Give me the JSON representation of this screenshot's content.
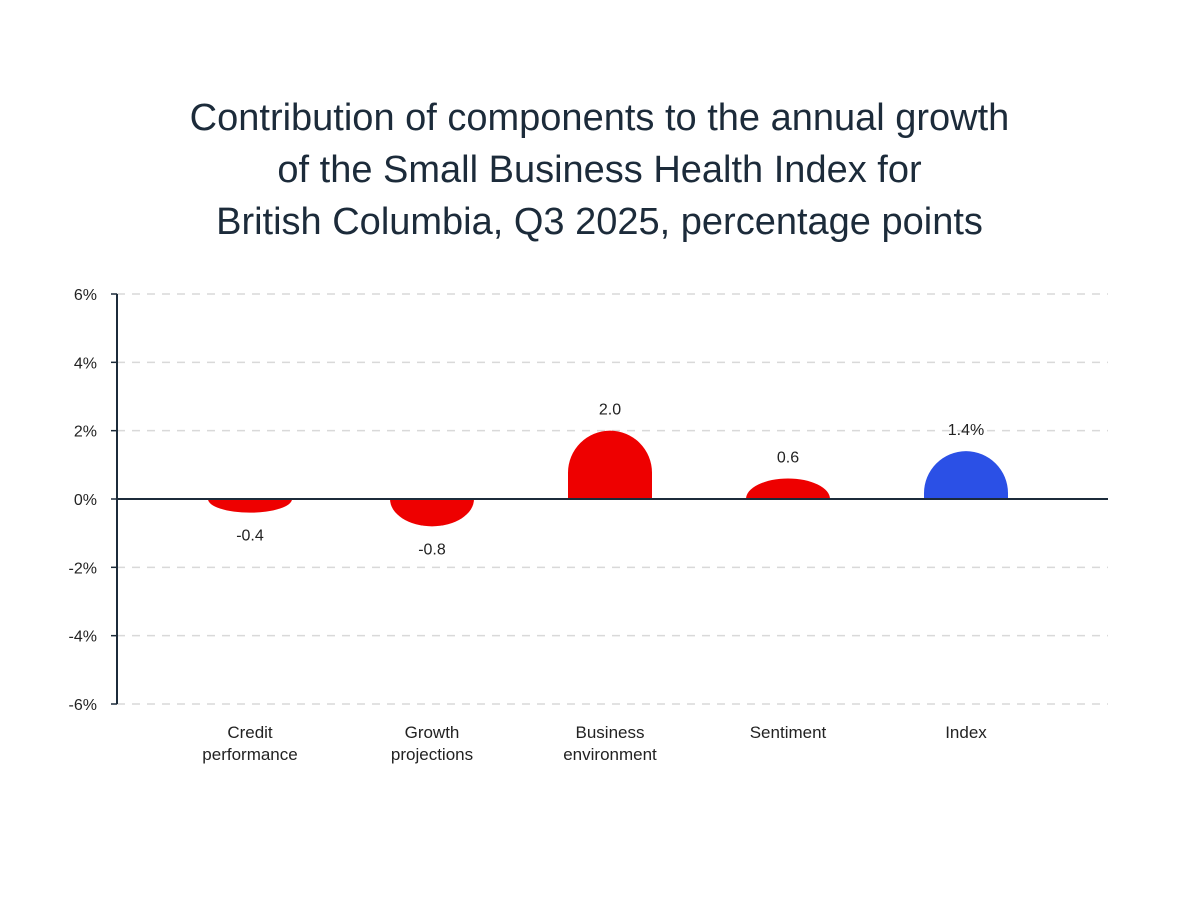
{
  "chart_data": {
    "type": "bar",
    "title_lines": [
      "Contribution of components to the annual growth",
      "of the Small Business Health Index for",
      "British Columbia, Q3 2025, percentage points"
    ],
    "categories": [
      [
        "Credit",
        "performance"
      ],
      [
        "Growth",
        "projections"
      ],
      [
        "Business",
        "environment"
      ],
      [
        "Sentiment"
      ],
      [
        "Index"
      ]
    ],
    "values": [
      -0.4,
      -0.8,
      2.0,
      0.6,
      1.4
    ],
    "data_labels": [
      "-0.4",
      "-0.8",
      "2.0",
      "0.6",
      "1.4%"
    ],
    "colors": [
      "#ee0000",
      "#ee0000",
      "#ee0000",
      "#ee0000",
      "#2b50e6"
    ],
    "ylim": [
      -6,
      6
    ],
    "yticks": [
      6,
      4,
      2,
      0,
      -2,
      -4,
      -6
    ],
    "ytick_labels": [
      "6%",
      "4%",
      "2%",
      "0%",
      "-2%",
      "-4%",
      "-6%"
    ],
    "xlabel": "",
    "ylabel": "",
    "grid": "horizontal-dashed",
    "legend": "none",
    "axis_color": "#1c2b3a",
    "grid_color": "#d9d9d9"
  }
}
